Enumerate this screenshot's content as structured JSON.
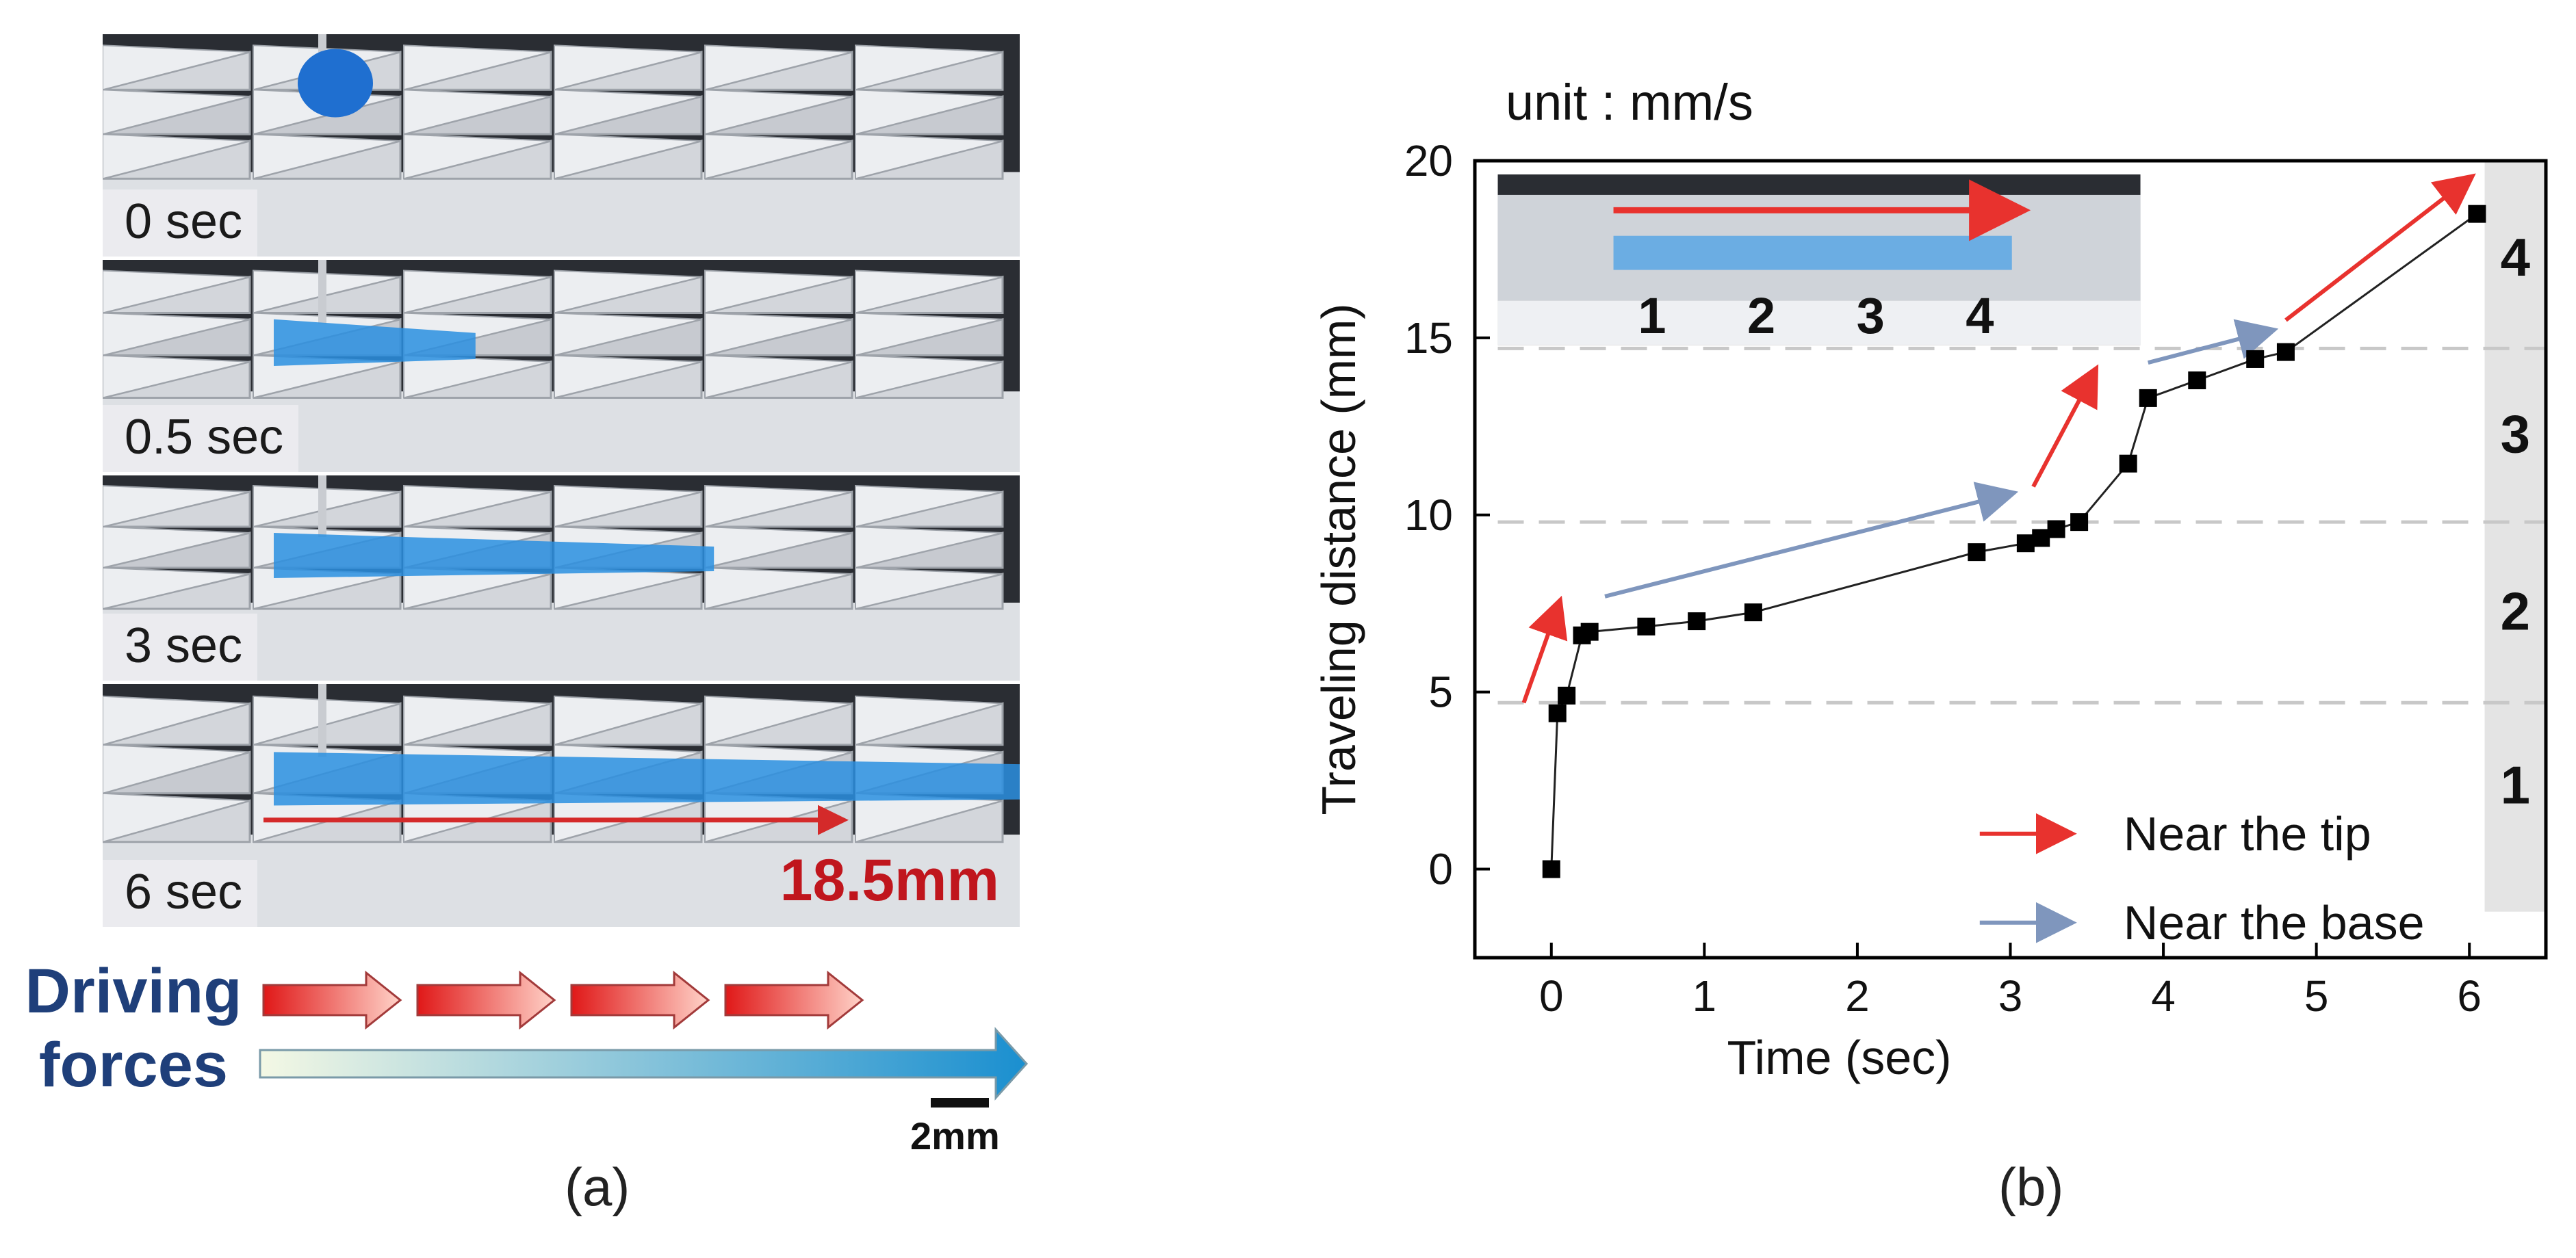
{
  "panel_a": {
    "frames": [
      {
        "time_label": "0 sec",
        "fill": 0.0
      },
      {
        "time_label": "0.5 sec",
        "fill": 0.22
      },
      {
        "time_label": "3 sec",
        "fill": 0.48
      },
      {
        "time_label": "6 sec",
        "fill": 0.92
      }
    ],
    "distance_label": "18.5mm",
    "driving_forces_label": [
      "Driving",
      "forces"
    ],
    "scale_bar_label": "2mm",
    "caption": "(a)",
    "colors": {
      "red_arrow": "#d42a2a",
      "water": "#2a8fe0",
      "force_blue": "#1a8fd0"
    }
  },
  "panel_b": {
    "caption": "(b)",
    "chart_data": {
      "type": "scatter",
      "title": "unit : mm/s",
      "xlabel": "Time (sec)",
      "ylabel": "Traveling distance (mm)",
      "xlim": [
        -0.5,
        6.5
      ],
      "ylim": [
        -2.5,
        20
      ],
      "xticks": [
        "0",
        "1",
        "2",
        "3",
        "4",
        "5",
        "6"
      ],
      "yticks": [
        "0",
        "5",
        "10",
        "15",
        "20"
      ],
      "series": [
        {
          "x": [
            0.0,
            0.04,
            0.1,
            0.2,
            0.25,
            0.62,
            0.95,
            1.32,
            2.78,
            3.1,
            3.2,
            3.3,
            3.45,
            3.77,
            3.9,
            4.22,
            4.6,
            4.8,
            6.05
          ],
          "y": [
            0.0,
            4.4,
            4.9,
            6.6,
            6.7,
            6.85,
            7.0,
            7.25,
            8.95,
            9.2,
            9.35,
            9.6,
            9.8,
            11.45,
            13.3,
            13.8,
            14.4,
            14.6,
            18.5
          ]
        }
      ],
      "region_lines_y": [
        4.7,
        9.8,
        14.7
      ],
      "region_labels": [
        "1",
        "2",
        "3",
        "4"
      ],
      "trend_arrows": [
        {
          "kind": "tip",
          "from": [
            -0.18,
            4.7
          ],
          "to": [
            0.05,
            7.5
          ]
        },
        {
          "kind": "base",
          "from": [
            0.35,
            7.7
          ],
          "to": [
            3.0,
            10.6
          ]
        },
        {
          "kind": "tip",
          "from": [
            3.15,
            10.8
          ],
          "to": [
            3.55,
            14.05
          ]
        },
        {
          "kind": "base",
          "from": [
            3.9,
            14.3
          ],
          "to": [
            4.7,
            15.2
          ]
        },
        {
          "kind": "tip",
          "from": [
            4.8,
            15.5
          ],
          "to": [
            6.0,
            19.5
          ]
        }
      ],
      "legend": {
        "placement": "bottom-right",
        "entries": [
          {
            "label": "Near the tip",
            "color": "#e8322e"
          },
          {
            "label": "Near the base",
            "color": "#7f96bd"
          }
        ]
      },
      "inset_labels": [
        "1",
        "2",
        "3",
        "4"
      ],
      "colors": {
        "tip": "#e8322e",
        "base": "#7f96bd",
        "marker": "#000000",
        "dash": "#c8c8c8",
        "band": "#e4e4e4"
      }
    }
  }
}
